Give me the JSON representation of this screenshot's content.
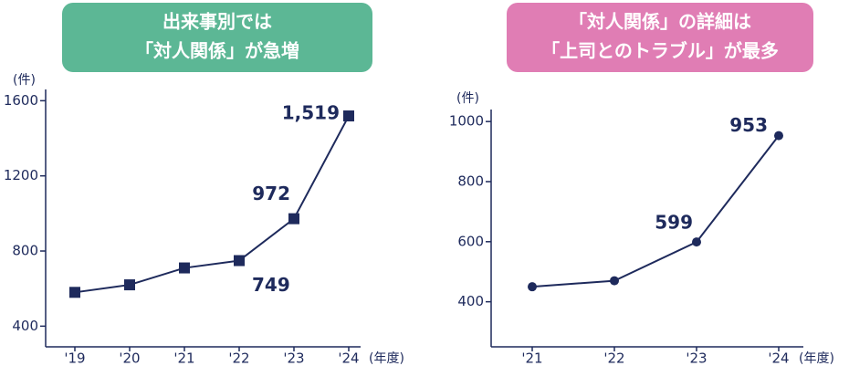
{
  "chart_data": [
    {
      "type": "line",
      "title": [
        "出来事別では",
        "「対人関係」が急増"
      ],
      "title_color": "#5cb795",
      "y_unit": "(件)",
      "x_unit": "(年度)",
      "categories": [
        "'19",
        "'20",
        "'21",
        "'22",
        "'23",
        "'24"
      ],
      "values": [
        580,
        620,
        710,
        749,
        972,
        1519
      ],
      "value_labels": [
        null,
        null,
        null,
        "749",
        "972",
        "1,519"
      ],
      "marker": "square",
      "color": "#1e2a5c",
      "ylim": [
        290,
        1660
      ],
      "yticks": [
        400,
        800,
        1200,
        1600
      ]
    },
    {
      "type": "line",
      "title": [
        "「対人関係」の詳細は",
        "「上司とのトラブル」が最多"
      ],
      "title_color": "#e07db4",
      "y_unit": "(件)",
      "x_unit": "(年度)",
      "categories": [
        "'21",
        "'22",
        "'23",
        "'24"
      ],
      "values": [
        450,
        470,
        599,
        953
      ],
      "value_labels": [
        null,
        null,
        "599",
        "953"
      ],
      "marker": "circle",
      "color": "#1e2a5c",
      "ylim": [
        250,
        1040
      ],
      "yticks": [
        400,
        600,
        800,
        1000
      ]
    }
  ]
}
